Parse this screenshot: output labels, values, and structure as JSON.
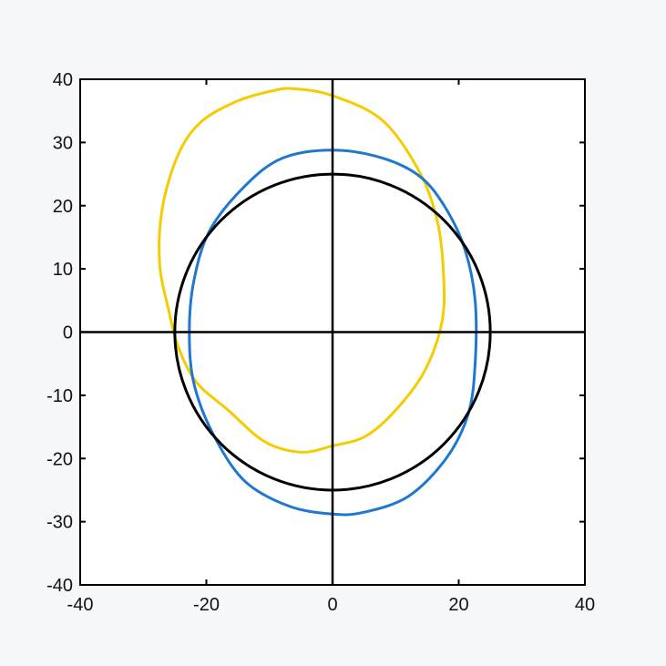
{
  "chart_data": {
    "type": "line",
    "title": "",
    "xlabel": "",
    "ylabel": "",
    "xlim": [
      -40,
      40
    ],
    "ylim": [
      -40,
      40
    ],
    "xticks": [
      -40,
      -20,
      0,
      20,
      40
    ],
    "yticks": [
      -40,
      -30,
      -20,
      -10,
      0,
      10,
      20,
      30,
      40
    ],
    "grid": false,
    "reference_lines": {
      "x": 0,
      "y": 0,
      "color": "#000000"
    },
    "series": [
      {
        "color": "#f5cc00",
        "closed": true,
        "points": [
          [
            -6,
            38.5
          ],
          [
            0,
            37.4
          ],
          [
            7.9,
            33.5
          ],
          [
            13.7,
            25.5
          ],
          [
            16.6,
            17.6
          ],
          [
            17.6,
            9
          ],
          [
            17.3,
            1.4
          ],
          [
            14.4,
            -6.5
          ],
          [
            9.4,
            -13
          ],
          [
            5,
            -16.6
          ],
          [
            0,
            -18
          ],
          [
            -5,
            -19
          ],
          [
            -10.8,
            -17.3
          ],
          [
            -16.6,
            -12.3
          ],
          [
            -21.6,
            -7.9
          ],
          [
            -24.5,
            -2.2
          ],
          [
            -26,
            3.6
          ],
          [
            -27.4,
            10.8
          ],
          [
            -27,
            19.5
          ],
          [
            -24.5,
            28
          ],
          [
            -20.9,
            33.2
          ],
          [
            -15.2,
            36.5
          ],
          [
            -9.4,
            38.2
          ]
        ]
      },
      {
        "color": "#1f77d0",
        "closed": true,
        "points": [
          [
            0,
            28.8
          ],
          [
            8,
            27.5
          ],
          [
            14,
            24.5
          ],
          [
            18,
            19.5
          ],
          [
            21,
            13
          ],
          [
            22.6,
            5
          ],
          [
            22.6,
            -5
          ],
          [
            21.5,
            -13
          ],
          [
            18,
            -20
          ],
          [
            12,
            -26
          ],
          [
            5,
            -28.5
          ],
          [
            0,
            -28.8
          ],
          [
            -7,
            -27.5
          ],
          [
            -14,
            -23.5
          ],
          [
            -19,
            -16
          ],
          [
            -22,
            -8
          ],
          [
            -22.7,
            0
          ],
          [
            -22,
            8
          ],
          [
            -19.5,
            16
          ],
          [
            -14,
            23
          ],
          [
            -8,
            27.5
          ]
        ]
      },
      {
        "color": "#000000",
        "shape": "circle",
        "center": [
          0,
          0
        ],
        "radius": 25
      }
    ]
  }
}
